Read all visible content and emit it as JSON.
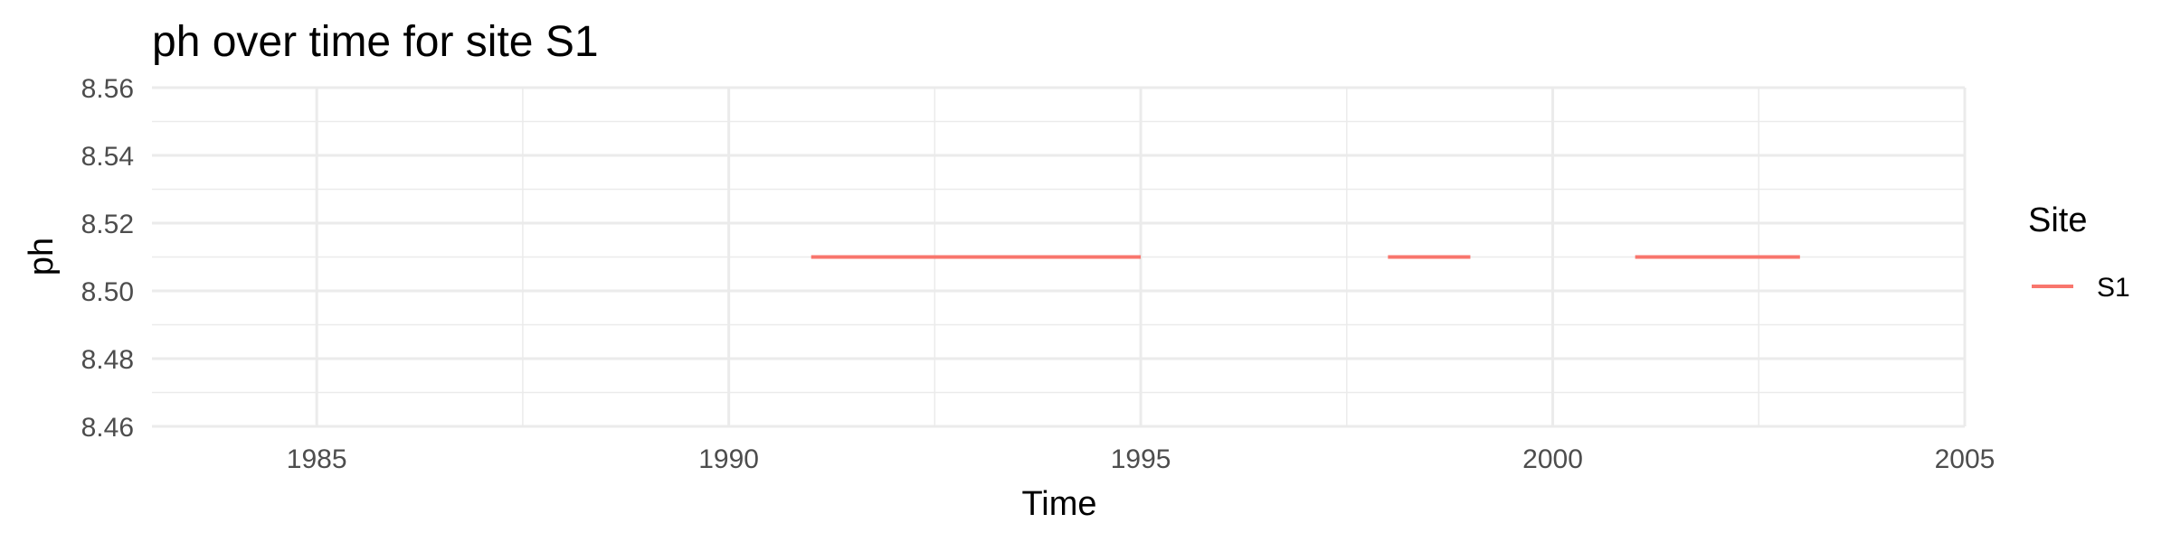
{
  "chart_data": {
    "type": "line",
    "title": "ph over time for site S1",
    "xlabel": "Time",
    "ylabel": "ph",
    "xlim": [
      1983,
      2005
    ],
    "ylim": [
      8.46,
      8.56
    ],
    "x_ticks": [
      "1985",
      "1990",
      "1995",
      "2000",
      "2005"
    ],
    "y_ticks": [
      "8.46",
      "8.48",
      "8.50",
      "8.52",
      "8.54",
      "8.56"
    ],
    "grid": true,
    "legend": {
      "title": "Site",
      "position": "right"
    },
    "series": [
      {
        "name": "S1",
        "color": "#F8766D",
        "segments": [
          [
            [
              1991,
              8.51
            ],
            [
              1995,
              8.51
            ]
          ],
          [
            [
              1998,
              8.51
            ],
            [
              1999,
              8.51
            ]
          ],
          [
            [
              2001,
              8.51
            ],
            [
              2003,
              8.51
            ]
          ]
        ]
      }
    ]
  }
}
